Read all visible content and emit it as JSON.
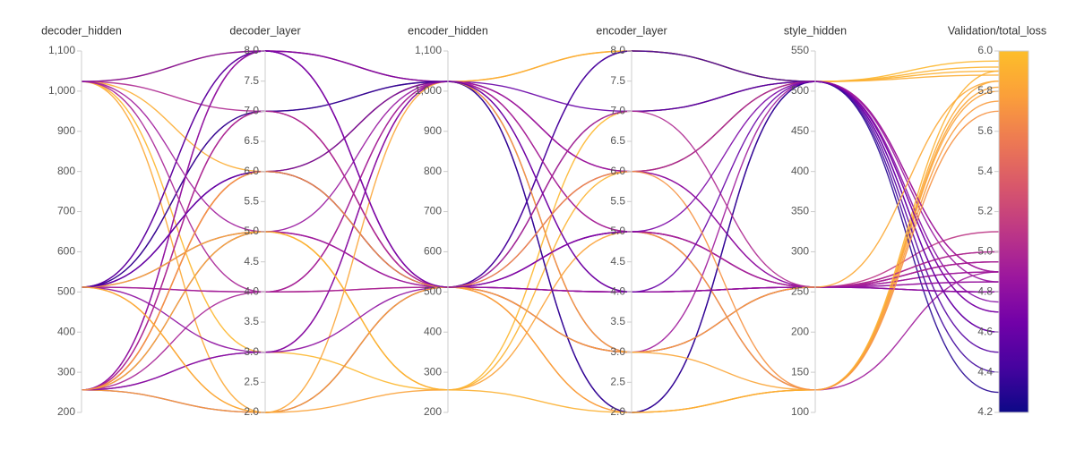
{
  "chart_data": {
    "type": "parallel",
    "dimensions": [
      {
        "label": "decoder_hidden",
        "range": [
          200,
          1100
        ],
        "ticks": [
          200,
          300,
          400,
          500,
          600,
          700,
          800,
          900,
          {
            "value": 1000,
            "label": "1,000"
          },
          {
            "value": 1100,
            "label": "1,100"
          }
        ]
      },
      {
        "label": "decoder_layer",
        "range": [
          2,
          8
        ],
        "ticks": [
          {
            "value": 2,
            "label": "2.0"
          },
          2.5,
          {
            "value": 3,
            "label": "3.0"
          },
          3.5,
          {
            "value": 4,
            "label": "4.0"
          },
          4.5,
          {
            "value": 5,
            "label": "5.0"
          },
          5.5,
          {
            "value": 6,
            "label": "6.0"
          },
          6.5,
          {
            "value": 7,
            "label": "7.0"
          },
          7.5,
          {
            "value": 8,
            "label": "8.0"
          }
        ]
      },
      {
        "label": "encoder_hidden",
        "range": [
          200,
          1100
        ],
        "ticks": [
          200,
          300,
          400,
          500,
          600,
          700,
          800,
          900,
          {
            "value": 1000,
            "label": "1,000"
          },
          {
            "value": 1100,
            "label": "1,100"
          }
        ]
      },
      {
        "label": "encoder_layer",
        "range": [
          2,
          8
        ],
        "ticks": [
          {
            "value": 2,
            "label": "2.0"
          },
          2.5,
          {
            "value": 3,
            "label": "3.0"
          },
          3.5,
          {
            "value": 4,
            "label": "4.0"
          },
          4.5,
          {
            "value": 5,
            "label": "5.0"
          },
          5.5,
          {
            "value": 6,
            "label": "6.0"
          },
          6.5,
          {
            "value": 7,
            "label": "7.0"
          },
          7.5,
          {
            "value": 8,
            "label": "8.0"
          }
        ]
      },
      {
        "label": "style_hidden",
        "range": [
          100,
          550
        ],
        "ticks": [
          100,
          150,
          200,
          250,
          300,
          350,
          400,
          450,
          500,
          550
        ]
      },
      {
        "label": "Validation/total_loss",
        "range": [
          4.2,
          6.0
        ],
        "ticks": [
          4.2,
          4.4,
          4.6,
          4.8,
          {
            "value": 5.0,
            "label": "5.0"
          },
          5.2,
          5.4,
          5.6,
          5.8,
          {
            "value": 6.0,
            "label": "6.0"
          }
        ]
      }
    ],
    "color_dimension": 5,
    "colorscale": [
      "#0d0887",
      "#46039f",
      "#7201a8",
      "#9c179e",
      "#bd3786",
      "#d8576b",
      "#ed7953",
      "#fb9f3a",
      "#fdbe2a"
    ],
    "lines": [
      [
        1024,
        8,
        1024,
        8,
        512,
        5.9
      ],
      [
        1024,
        2,
        512,
        2,
        128,
        5.85
      ],
      [
        512,
        8,
        1024,
        3,
        512,
        4.9
      ],
      [
        512,
        7,
        512,
        4,
        256,
        4.95
      ],
      [
        256,
        6,
        512,
        5,
        256,
        4.8
      ],
      [
        256,
        8,
        1024,
        2,
        512,
        4.7
      ],
      [
        256,
        5,
        1024,
        6,
        512,
        4.85
      ],
      [
        512,
        4,
        512,
        4,
        256,
        5.1
      ],
      [
        1024,
        3,
        256,
        7,
        512,
        5.95
      ],
      [
        256,
        2,
        512,
        8,
        512,
        4.75
      ],
      [
        512,
        6,
        1024,
        5,
        128,
        4.9
      ],
      [
        1024,
        7,
        512,
        3,
        256,
        5.0
      ],
      [
        256,
        3,
        1024,
        7,
        512,
        4.6
      ],
      [
        512,
        5,
        512,
        6,
        256,
        4.85
      ],
      [
        256,
        7,
        1024,
        4,
        256,
        4.9
      ],
      [
        512,
        2,
        256,
        5,
        128,
        5.8
      ],
      [
        1024,
        6,
        1024,
        8,
        512,
        5.88
      ],
      [
        256,
        4,
        512,
        3,
        256,
        4.95
      ],
      [
        512,
        3,
        1024,
        6,
        256,
        4.8
      ],
      [
        256,
        6,
        512,
        2,
        128,
        5.75
      ],
      [
        512,
        8,
        512,
        7,
        512,
        4.5
      ],
      [
        256,
        5,
        256,
        6,
        512,
        5.92
      ],
      [
        1024,
        5,
        512,
        4,
        256,
        4.9
      ],
      [
        512,
        7,
        1024,
        2,
        512,
        4.3
      ],
      [
        256,
        8,
        512,
        5,
        256,
        4.85
      ],
      [
        512,
        6,
        512,
        8,
        512,
        4.4
      ],
      [
        256,
        2,
        1024,
        3,
        128,
        5.82
      ],
      [
        512,
        4,
        1024,
        6,
        512,
        4.9
      ],
      [
        256,
        7,
        512,
        7,
        256,
        5.0
      ],
      [
        1024,
        4,
        1024,
        5,
        256,
        4.95
      ],
      [
        512,
        5,
        256,
        2,
        128,
        5.9
      ],
      [
        256,
        3,
        512,
        4,
        256,
        4.8
      ],
      [
        512,
        6,
        1024,
        4,
        512,
        4.6
      ],
      [
        256,
        6,
        512,
        6,
        128,
        5.7
      ],
      [
        512,
        2,
        512,
        3,
        256,
        5.85
      ],
      [
        1024,
        8,
        512,
        5,
        512,
        4.7
      ]
    ]
  }
}
